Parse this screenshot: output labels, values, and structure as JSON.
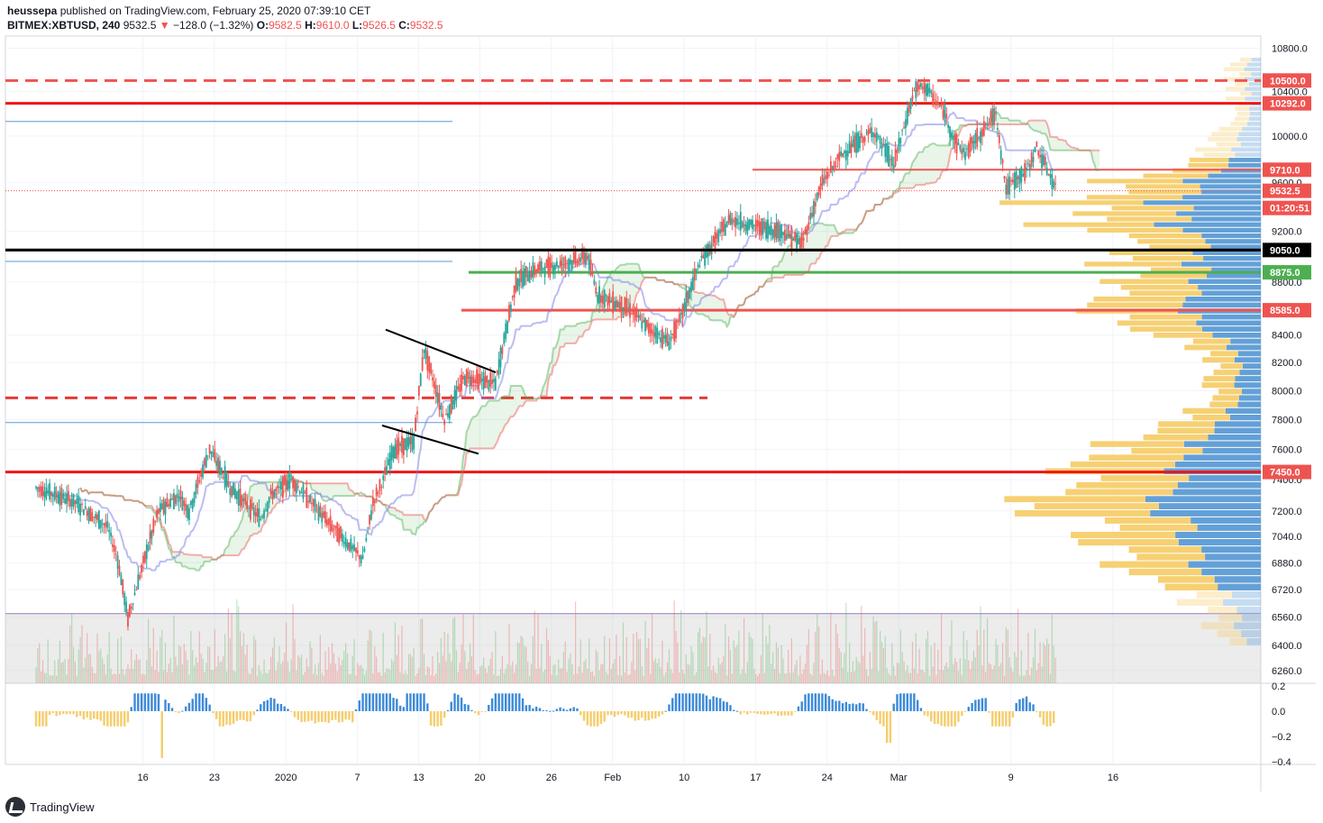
{
  "header": {
    "author": "heussepa",
    "published_text": "published on TradingView.com, February 25, 2020 07:39:10 CET",
    "symbol": "BITMEX:XBTUSD, 240",
    "last": "9532.5",
    "change": "−128.0 (−1.32%)",
    "o_label": "O:",
    "o_value": "9582.5",
    "h_label": "H:",
    "h_value": "9610.0",
    "l_label": "L:",
    "l_value": "9526.5",
    "c_label": "C:",
    "c_value": "9532.5"
  },
  "footer": {
    "brand": "TradingView"
  },
  "chart_data": [
    {
      "type": "candlestick",
      "symbol": "BITMEX:XBTUSD",
      "interval": "240",
      "x_ticks": [
        "16",
        "23",
        "2020",
        "7",
        "13",
        "20",
        "26",
        "Feb",
        "10",
        "17",
        "24",
        "Mar",
        "9",
        "16"
      ],
      "y_ticks": [
        "10800.0",
        "10400.0",
        "10000.0",
        "9600.0",
        "9200.0",
        "8800.0",
        "8400.0",
        "8200.0",
        "8000.0",
        "7800.0",
        "7600.0",
        "7400.0",
        "7200.0",
        "7040.0",
        "6880.0",
        "6720.0",
        "6560.0",
        "6400.0",
        "6260.0"
      ],
      "y_scale": "log",
      "ylim": [
        6200,
        10900
      ],
      "price_labels": [
        {
          "value": "10500.0",
          "color": "#ef5350"
        },
        {
          "value": "10292.0",
          "color": "#ef5350"
        },
        {
          "value": "9710.0",
          "color": "#ef5350"
        },
        {
          "value": "9532.5",
          "color": "#ef5350"
        },
        {
          "value": "01:20:51",
          "color": "#ef5350"
        },
        {
          "value": "9050.0",
          "color": "#000000"
        },
        {
          "value": "8875.0",
          "color": "#4caf50"
        },
        {
          "value": "8585.0",
          "color": "#ef5350"
        },
        {
          "value": "7450.0",
          "color": "#ef5350"
        }
      ],
      "levels": [
        {
          "price": 10500,
          "color": "#ef5350",
          "style": "dashed"
        },
        {
          "price": 10292,
          "color": "#ef1515",
          "style": "solid"
        },
        {
          "price": 9710,
          "color": "#ef5350",
          "style": "solid"
        },
        {
          "price": 9050,
          "color": "#000000",
          "style": "solid"
        },
        {
          "price": 8875,
          "color": "#4caf50",
          "style": "solid"
        },
        {
          "price": 8585,
          "color": "#ef5350",
          "style": "solid"
        },
        {
          "price": 7950,
          "color": "#e53935",
          "style": "dashed"
        },
        {
          "price": 7450,
          "color": "#ef1515",
          "style": "solid"
        }
      ],
      "price_path": {
        "day_index": [
          0,
          4,
          7,
          8,
          9,
          12,
          14,
          15,
          17,
          19,
          22,
          23,
          25,
          27,
          29,
          32,
          33,
          34,
          35,
          37,
          38,
          40,
          42,
          45,
          47,
          49,
          52,
          54,
          55,
          58,
          60,
          62,
          63,
          65,
          68,
          70,
          73,
          75,
          77,
          79,
          82,
          84,
          86,
          87,
          89,
          90,
          91,
          94,
          95,
          97,
          98,
          100
        ],
        "close": [
          7350,
          7250,
          7100,
          6900,
          6550,
          7200,
          7300,
          7200,
          7600,
          7350,
          7150,
          7300,
          7400,
          7250,
          7100,
          6900,
          7250,
          7400,
          7600,
          7650,
          8300,
          7800,
          8100,
          8050,
          8800,
          8900,
          8950,
          9000,
          8700,
          8600,
          8450,
          8350,
          8500,
          8950,
          9300,
          9250,
          9200,
          9100,
          9600,
          9850,
          10050,
          9750,
          10400,
          10450,
          10200,
          9950,
          9850,
          10200,
          9550,
          9700,
          9900,
          9530
        ]
      },
      "volume_profile": {
        "up_color": "#5b9bd5",
        "down_color": "#f5cd6c"
      }
    },
    {
      "type": "histogram",
      "y_ticks": [
        "0.2",
        "0.0",
        "−0.2",
        "−0.4"
      ],
      "ylim": [
        -0.42,
        0.22
      ]
    }
  ]
}
